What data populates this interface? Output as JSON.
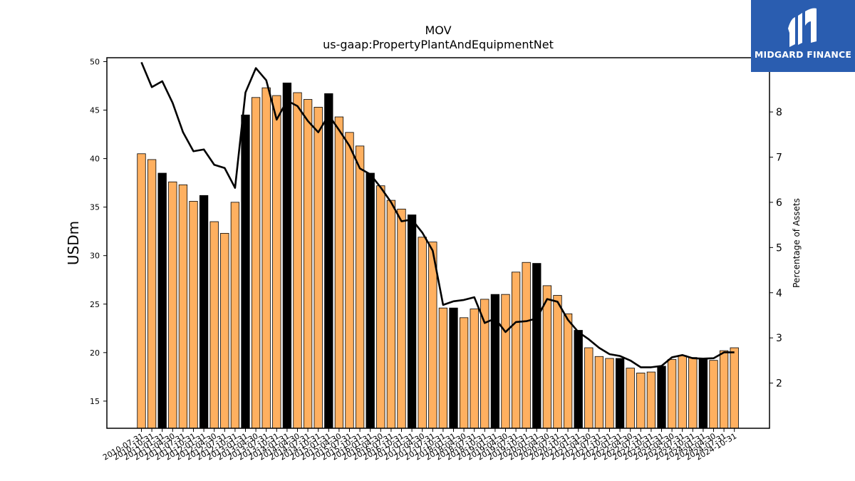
{
  "logo": {
    "text": "MIDGARD FINANCE",
    "background": "#2a5db0"
  },
  "chart_data": {
    "type": "bar",
    "title": "MOV",
    "subtitle": "us-gaap:PropertyPlantAndEquipmentNet",
    "ylabel": "USDm",
    "y2label": "Percentage of Assets",
    "ylim": [
      12.2,
      50.4
    ],
    "y2lim": [
      1.0,
      9.2
    ],
    "yticks": [
      15,
      20,
      25,
      30,
      35,
      40,
      45,
      50
    ],
    "y2ticks": [
      2,
      3,
      4,
      5,
      6,
      7,
      8,
      9
    ],
    "colors": {
      "bar": "#ffb060",
      "bar_highlight": "#000000",
      "line": "#000000"
    },
    "categories": [
      "2010-07-31",
      "2010-10-31",
      "2011-01-31",
      "2011-04-30",
      "2011-07-31",
      "2011-10-31",
      "2012-01-31",
      "2012-04-30",
      "2012-07-31",
      "2012-10-31",
      "2013-01-31",
      "2013-04-30",
      "2013-07-31",
      "2013-10-31",
      "2014-01-31",
      "2014-04-30",
      "2014-07-31",
      "2014-10-31",
      "2015-01-31",
      "2015-04-30",
      "2015-07-31",
      "2015-10-31",
      "2016-01-31",
      "2016-04-30",
      "2016-07-31",
      "2016-10-31",
      "2017-01-31",
      "2017-04-30",
      "2017-07-31",
      "2017-10-31",
      "2018-01-31",
      "2018-04-30",
      "2018-07-31",
      "2018-10-31",
      "2019-01-31",
      "2019-04-30",
      "2019-07-31",
      "2019-10-31",
      "2020-01-31",
      "2020-04-30",
      "2020-07-31",
      "2020-10-31",
      "2021-01-31",
      "2021-04-30",
      "2021-07-31",
      "2021-10-31",
      "2022-01-31",
      "2022-04-30",
      "2022-07-31",
      "2022-10-31",
      "2023-01-31",
      "2023-04-30",
      "2023-07-31",
      "2023-10-31",
      "2024-01-31",
      "2024-04-30",
      "2024-07-31",
      "2024-10-31"
    ],
    "tick_labels": [
      "2010-07-31",
      "2010-10-31",
      "2011-01-31",
      "2011-04-30",
      "2011-07-31",
      "2011-10-31",
      "2012-01-31",
      "2012-04-30",
      "2012-07-31",
      "2012-10-31",
      "2013-01-31",
      "2013-04-30",
      "2013-07-31",
      "2013-10-31",
      "2014-01-31",
      "2014-04-30",
      "2014-07-31",
      "2014-10-31",
      "2015-01-31",
      "2015-04-30",
      "2015-07-31",
      "2015-10-31",
      "2016-01-31",
      "2016-04-30",
      "2016-07-31",
      "2016-10-31",
      "2017-01-31",
      "2017-04-30",
      "2017-07-31",
      "2017-10-31",
      "2018-01-31",
      "2018-04-30",
      "2018-07-31",
      "2018-10-31",
      "2019-01-31",
      "2019-04-30",
      "2019-07-31",
      "2019-10-31",
      "2020-01-31",
      "2020-04-30",
      "2020-07-31",
      "2020-10-31",
      "2021-01-31",
      "2021-04-30",
      "2021-07-31",
      "2021-10-31",
      "2022-01-31",
      "2022-04-30",
      "2022-07-31",
      "2022-10-31",
      "2023-01-31",
      "2023-04-30",
      "2023-07-31",
      "2023-10-31",
      "2024-01-31",
      "2024-04-30",
      "2024-07-31",
      "2024-10-31"
    ],
    "highlight": [
      2,
      6,
      10,
      14,
      18,
      22,
      26,
      30,
      34,
      38,
      42,
      46,
      50,
      54
    ],
    "series": [
      {
        "axis": "left",
        "values": [
          40.5,
          39.9,
          38.5,
          37.6,
          37.3,
          35.6,
          36.2,
          33.5,
          32.3,
          35.5,
          44.5,
          46.3,
          47.3,
          46.5,
          47.8,
          46.8,
          46.1,
          45.3,
          46.7,
          44.3,
          42.7,
          41.3,
          38.5,
          37.2,
          35.7,
          34.8,
          34.2,
          31.9,
          31.4,
          24.6,
          24.6,
          23.6,
          24.5,
          25.5,
          26.0,
          26.0,
          28.3,
          29.3,
          29.2,
          26.9,
          25.9,
          24.0,
          22.3,
          20.5,
          19.6,
          19.4,
          19.4,
          18.4,
          17.9,
          18.0,
          18.6,
          19.3,
          19.7,
          19.5,
          19.4,
          19.2,
          20.2,
          20.5
        ]
      },
      {
        "axis": "right",
        "values": [
          9.1,
          8.55,
          8.68,
          8.2,
          7.55,
          7.13,
          7.17,
          6.83,
          6.76,
          6.32,
          8.43,
          8.97,
          8.7,
          7.83,
          8.25,
          8.13,
          7.8,
          7.55,
          7.93,
          7.6,
          7.25,
          6.75,
          6.62,
          6.33,
          6.0,
          5.58,
          5.62,
          5.33,
          4.93,
          3.73,
          3.81,
          3.84,
          3.9,
          3.33,
          3.43,
          3.13,
          3.35,
          3.37,
          3.43,
          3.86,
          3.8,
          3.4,
          3.13,
          2.97,
          2.78,
          2.64,
          2.6,
          2.5,
          2.35,
          2.35,
          2.38,
          2.57,
          2.62,
          2.55,
          2.54,
          2.55,
          2.68,
          2.68
        ]
      }
    ]
  }
}
